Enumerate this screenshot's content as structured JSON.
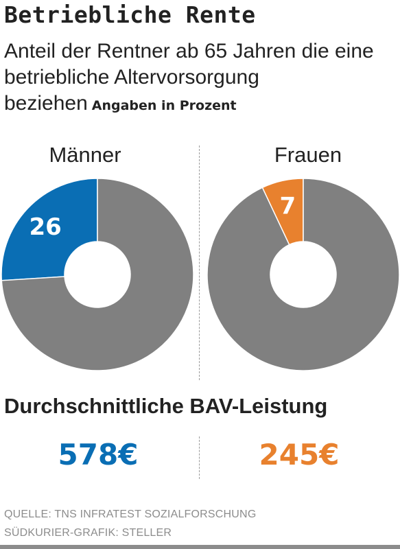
{
  "header": {
    "title": "Betriebliche Rente",
    "subtitle": "Anteil der Rentner ab 65 Jahren die eine betriebliche Altervorsorgung beziehen",
    "unit_note": "Angaben in Prozent"
  },
  "chart_data": [
    {
      "type": "pie",
      "title": "Männer",
      "slices": [
        {
          "label": "26",
          "value": 26,
          "color": "#0a6eb4"
        },
        {
          "label": "",
          "value": 74,
          "color": "#808080"
        }
      ]
    },
    {
      "type": "pie",
      "title": "Frauen",
      "slices": [
        {
          "label": "7",
          "value": 7,
          "color": "#e8812e"
        },
        {
          "label": "",
          "value": 93,
          "color": "#808080"
        }
      ]
    }
  ],
  "benefit": {
    "heading": "Durchschnittliche BAV-Leistung",
    "men": {
      "value": "578€",
      "color": "#0a6eb4"
    },
    "women": {
      "value": "245€",
      "color": "#e8812e"
    }
  },
  "footer": {
    "source": "QUELLE: TNS INFRATEST SOZIALFORSCHUNG",
    "credit": "SÜDKURIER-GRAFIK: STELLER"
  }
}
